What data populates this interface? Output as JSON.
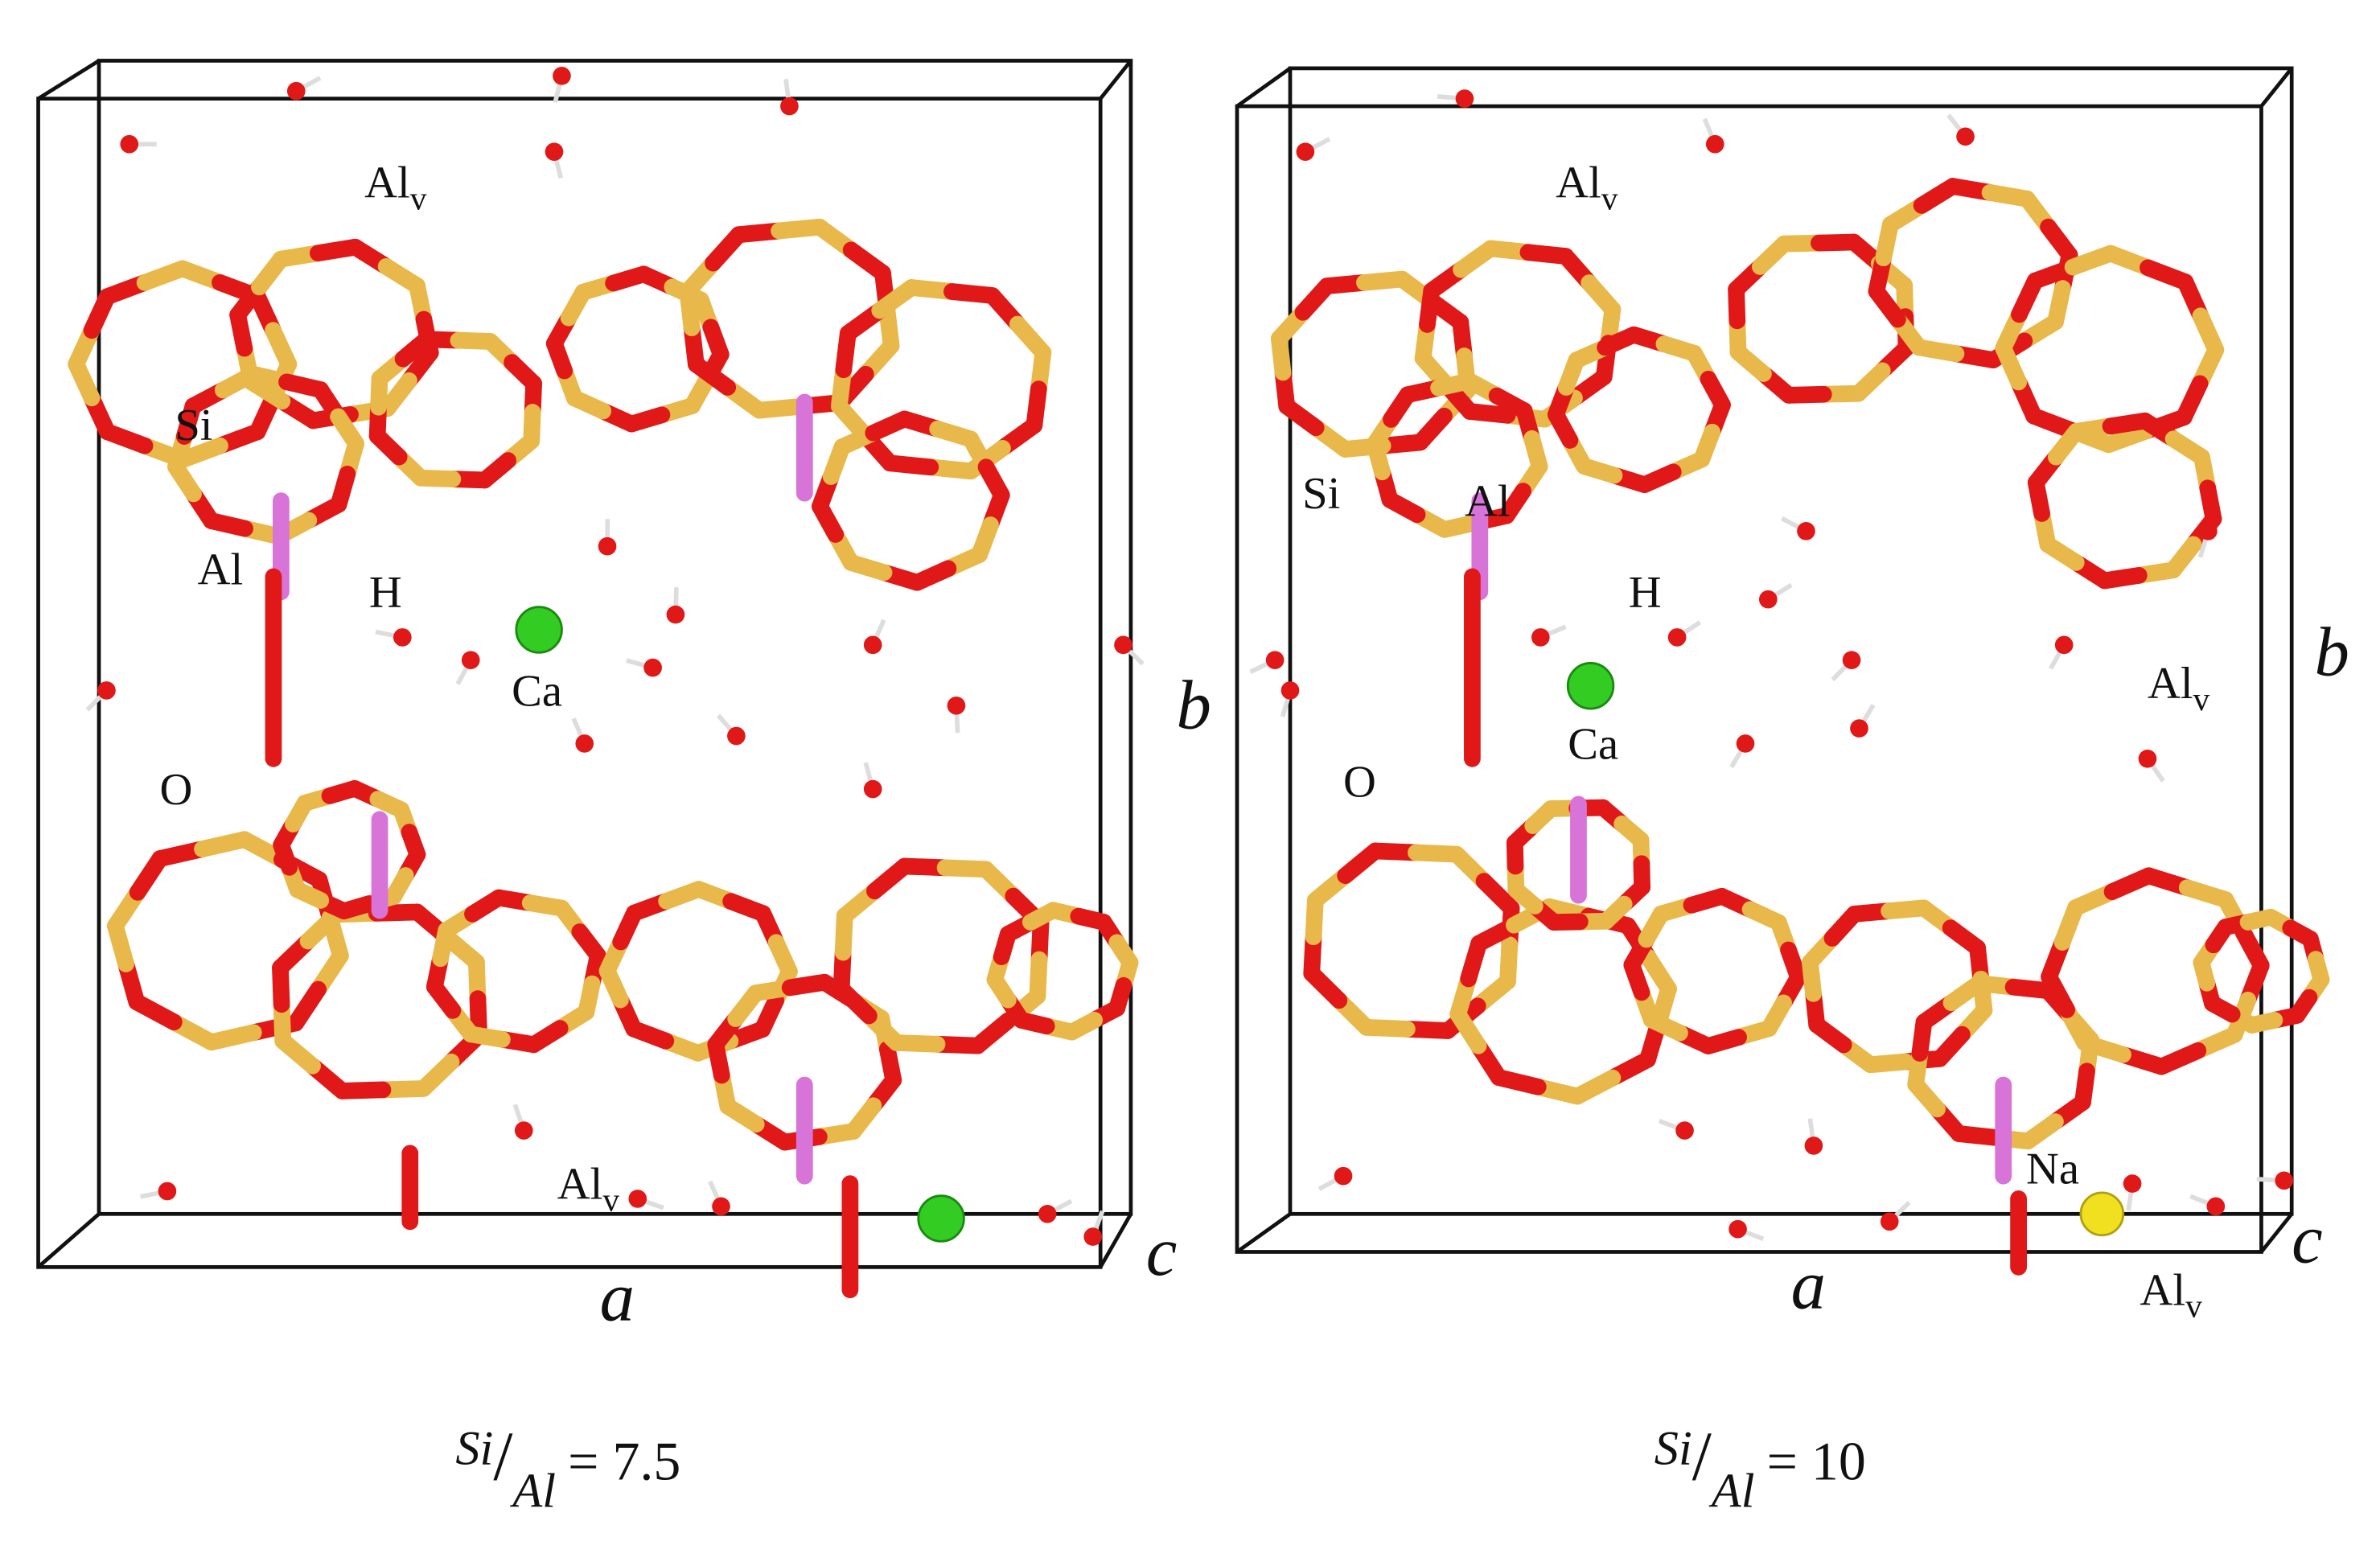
{
  "panels": [
    {
      "atom_labels": [
        {
          "text": "Al",
          "sub": "v"
        },
        {
          "text": "Si"
        },
        {
          "text": "Al"
        },
        {
          "text": "H"
        },
        {
          "text": "Ca"
        },
        {
          "text": "O"
        },
        {
          "text": "Al",
          "sub": "v"
        }
      ],
      "axes": {
        "a": "a",
        "b": "b",
        "c": "c"
      },
      "caption": {
        "numerator": "Si",
        "slash": "/",
        "denominator": "Al",
        "rest": "= 7.5"
      }
    },
    {
      "atom_labels": [
        {
          "text": "Al",
          "sub": "v"
        },
        {
          "text": "Si"
        },
        {
          "text": "Al"
        },
        {
          "text": "H"
        },
        {
          "text": "Ca"
        },
        {
          "text": "O"
        },
        {
          "text": "Al",
          "sub": "v"
        },
        {
          "text": "Na"
        },
        {
          "text": "Al",
          "sub": "v"
        }
      ],
      "axes": {
        "a": "a",
        "b": "b",
        "c": "c"
      },
      "caption": {
        "numerator": "Si",
        "slash": "/",
        "denominator": "Al",
        "rest": "= 10"
      }
    }
  ]
}
